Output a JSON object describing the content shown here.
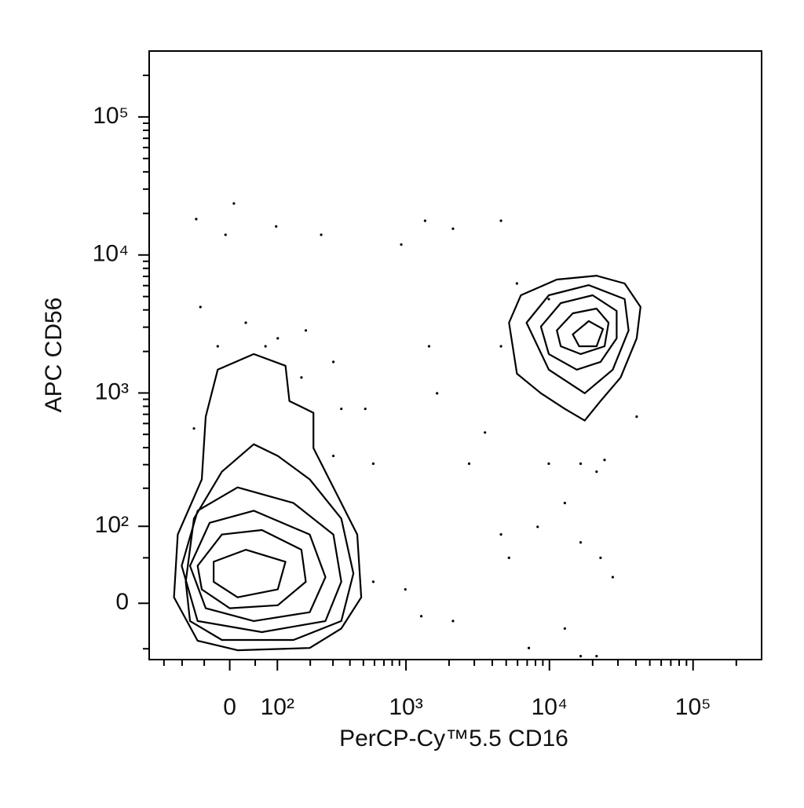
{
  "chart_data": {
    "type": "contour",
    "x_label": "PerCP-Cy™5.5 CD16",
    "y_label": "APC CD56",
    "scale": "biexponential",
    "xlim": [
      -200,
      300000
    ],
    "ylim": [
      -65,
      300000
    ],
    "xticks": [
      0,
      {
        "value": 100,
        "label": "10²"
      },
      {
        "value": 1000,
        "label": "10³"
      },
      {
        "value": 10000,
        "label": "10⁴"
      },
      {
        "value": 100000,
        "label": "10⁵"
      }
    ],
    "yticks": [
      0,
      {
        "value": 100,
        "label": "10²"
      },
      {
        "value": 1000,
        "label": "10³"
      },
      {
        "value": 10000,
        "label": "10⁴"
      },
      {
        "value": 100000,
        "label": "10⁵"
      }
    ],
    "xminorticks": [
      -150,
      -100,
      -50,
      50,
      200,
      300,
      400,
      500,
      600,
      700,
      800,
      900,
      2000,
      3000,
      4000,
      5000,
      6000,
      7000,
      8000,
      9000,
      20000,
      30000,
      40000,
      50000,
      60000,
      70000,
      80000,
      90000,
      200000
    ],
    "yminorticks": [
      -50,
      50,
      200,
      300,
      400,
      500,
      600,
      700,
      800,
      900,
      2000,
      3000,
      4000,
      5000,
      6000,
      7000,
      8000,
      9000,
      20000,
      30000,
      40000,
      50000,
      60000,
      70000,
      80000,
      90000,
      200000
    ],
    "color": "#000000",
    "contours": [
      {
        "x": [
          -121,
          -111,
          -55,
          -47,
          -23,
          47,
          121,
          132,
          212,
          212,
          302,
          452,
          483,
          346,
          198,
          15,
          -64
        ],
        "y": [
          6,
          85,
          233,
          673,
          1475,
          1915,
          1575,
          874,
          718,
          397,
          203,
          85,
          6,
          -26,
          -49,
          -52,
          -40
        ]
      },
      {
        "x": [
          -91,
          -72,
          -15,
          47,
          101,
          198,
          346,
          424,
          346,
          144,
          -15,
          -81
        ],
        "y": [
          22,
          116,
          266,
          424,
          348,
          233,
          116,
          31,
          -18,
          -39,
          -39,
          -18
        ]
      },
      {
        "x": [
          -101,
          -64,
          15,
          144,
          302,
          346,
          263,
          64,
          -64
        ],
        "y": [
          40,
          134,
          203,
          154,
          85,
          22,
          -18,
          -30,
          -18
        ]
      },
      {
        "x": [
          -81,
          -39,
          47,
          198,
          263,
          198,
          47,
          -47
        ],
        "y": [
          40,
          107,
          134,
          85,
          27,
          -9,
          -18,
          -5
        ]
      },
      {
        "x": [
          -64,
          -15,
          64,
          169,
          184,
          101,
          0,
          -55
        ],
        "y": [
          40,
          85,
          93,
          61,
          22,
          -2,
          -5,
          14
        ]
      },
      {
        "x": [
          -31,
          31,
          121,
          101,
          15,
          -31
        ],
        "y": [
          45,
          61,
          45,
          14,
          6,
          22
        ]
      },
      {
        "x": [
          5230,
          6330,
          11260,
          21300,
          33400,
          43100,
          40500,
          31300,
          22700,
          17600,
          12800,
          8720,
          5940
        ],
        "y": [
          3230,
          5110,
          6640,
          7080,
          6220,
          4200,
          2490,
          1295,
          874,
          630,
          767,
          995,
          1380
        ]
      },
      {
        "x": [
          6930,
          9900,
          18800,
          33400,
          35600,
          27600,
          17600,
          9900
        ],
        "y": [
          3230,
          5110,
          6050,
          4790,
          2840,
          1475,
          995,
          1475
        ]
      },
      {
        "x": [
          8720,
          12000,
          20000,
          29400,
          29400,
          22700,
          15500,
          9900
        ],
        "y": [
          3030,
          4480,
          5110,
          3930,
          2490,
          1680,
          1475,
          1915
        ]
      },
      {
        "x": [
          11260,
          14550,
          21300,
          25800,
          24200,
          16500,
          12000
        ],
        "y": [
          2840,
          3780,
          4090,
          3230,
          2180,
          1915,
          2180
        ]
      },
      {
        "x": [
          14550,
          18800,
          23600,
          21300,
          16100
        ],
        "y": [
          2660,
          3320,
          2910,
          2180,
          2180
        ]
      }
    ],
    "points": {
      "x": [
        -67,
        8,
        -8,
        97,
        244,
        -58,
        31,
        72,
        184,
        302,
        346,
        516,
        588,
        302,
        926,
        1360,
        2130,
        4600,
        1450,
        1650,
        2760,
        3560,
        4600,
        9900,
        16500,
        12800,
        21300,
        8280,
        16500,
        22700,
        27600,
        990,
        588,
        1280,
        2130,
        7190,
        12800,
        16500,
        21300,
        40500,
        24200,
        4600,
        5230,
        -23,
        -72,
        101,
        169,
        9900,
        5940
      ],
      "y": [
        18200,
        23600,
        14000,
        16100,
        14000,
        4200,
        3230,
        2180,
        2840,
        1680,
        767,
        767,
        305,
        348,
        11900,
        17700,
        15500,
        17700,
        2180,
        995,
        305,
        516,
        2180,
        305,
        305,
        154,
        266,
        99,
        72,
        50,
        27,
        14,
        22,
        -13,
        -18,
        -49,
        -26,
        -60,
        -60,
        673,
        325,
        85,
        50,
        2180,
        552,
        2490,
        1295,
        4790,
        6220
      ]
    }
  }
}
